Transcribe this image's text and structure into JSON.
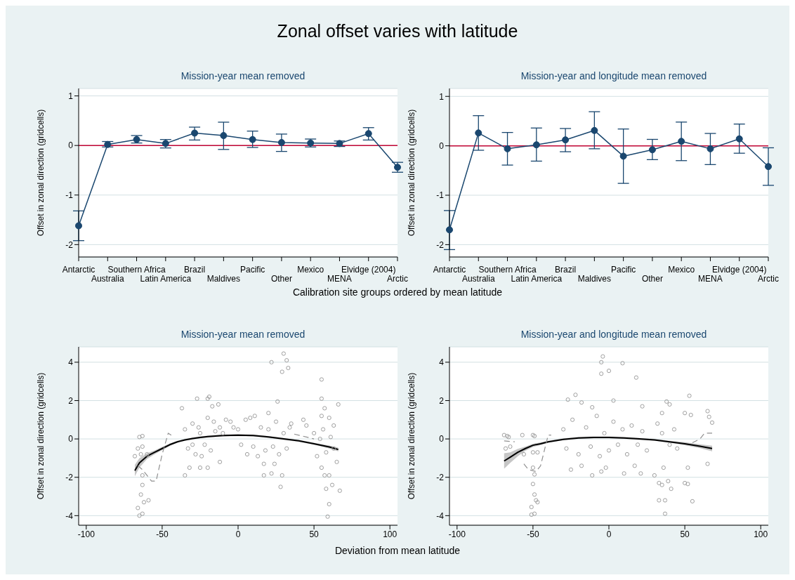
{
  "chart_data": [
    {
      "type": "line",
      "title": "Mission-year mean removed",
      "annotations": [
        "Zonal offset varies with latitude"
      ],
      "xlabel": "Calibration site groups ordered by mean latitude",
      "ylabel": "Offset in zonal direction (gridcells)",
      "categories": [
        "Antarctic",
        "Australia",
        "Southern Africa",
        "Latin America",
        "Brazil",
        "Maldives",
        "Pacific",
        "Other",
        "Mexico",
        "MENA",
        "Elvidge (2004)",
        "Arctic"
      ],
      "series": [
        {
          "color": "#1a476f",
          "values": [
            -1.62,
            0.02,
            0.12,
            0.04,
            0.25,
            0.2,
            0.12,
            0.06,
            0.05,
            0.04,
            0.24,
            -0.44
          ],
          "errors": [
            [
              -1.92,
              -1.32
            ],
            [
              -0.03,
              0.08
            ],
            [
              0.05,
              0.2
            ],
            [
              -0.05,
              0.12
            ],
            [
              0.11,
              0.37
            ],
            [
              -0.08,
              0.47
            ],
            [
              -0.04,
              0.29
            ],
            [
              -0.12,
              0.23
            ],
            [
              -0.03,
              0.13
            ],
            [
              -0.02,
              0.09
            ],
            [
              0.11,
              0.36
            ],
            [
              -0.54,
              -0.34
            ]
          ]
        }
      ],
      "ylim": [
        -2.25,
        1.15
      ],
      "yticks": [
        -2,
        -1,
        0,
        1
      ],
      "grid": "y",
      "marker": "circle",
      "ref_lines": [
        {
          "axis": "y",
          "value": 0,
          "color": "#c10534"
        }
      ]
    },
    {
      "type": "line",
      "title": "Mission-year and longitude mean removed",
      "ylabel": "Offset in zonal direction (gridcells)",
      "categories": [
        "Antarctic",
        "Australia",
        "Southern Africa",
        "Latin America",
        "Brazil",
        "Maldives",
        "Pacific",
        "Other",
        "Mexico",
        "MENA",
        "Elvidge (2004)",
        "Arctic"
      ],
      "series": [
        {
          "color": "#1a476f",
          "values": [
            -1.7,
            0.26,
            -0.06,
            0.02,
            0.12,
            0.31,
            -0.21,
            -0.08,
            0.09,
            -0.06,
            0.14,
            -0.42
          ],
          "errors": [
            [
              -2.1,
              -1.31
            ],
            [
              -0.09,
              0.61
            ],
            [
              -0.39,
              0.27
            ],
            [
              -0.31,
              0.36
            ],
            [
              -0.12,
              0.35
            ],
            [
              -0.06,
              0.69
            ],
            [
              -0.76,
              0.34
            ],
            [
              -0.28,
              0.13
            ],
            [
              -0.3,
              0.48
            ],
            [
              -0.38,
              0.25
            ],
            [
              -0.15,
              0.44
            ],
            [
              -0.8,
              -0.04
            ]
          ]
        }
      ],
      "ylim": [
        -2.25,
        1.16
      ],
      "yticks": [
        -2,
        -1,
        0,
        1
      ],
      "grid": "y",
      "marker": "circle",
      "ref_lines": [
        {
          "axis": "y",
          "value": 0,
          "color": "#c10534"
        }
      ]
    },
    {
      "type": "scatter",
      "title": "Mission-year mean removed",
      "xlabel": "Deviation from mean latitude",
      "ylabel": "Offset in zonal direction (gridcells)",
      "series": [
        {
          "type": "scatter",
          "color": "#a0a0a0",
          "marker": "circle",
          "x": [
            -68,
            -66,
            -65,
            -63,
            -63,
            -64,
            -63,
            -63,
            -64,
            -66,
            -65,
            -63,
            -62,
            -59,
            -60,
            -35,
            -37,
            -32,
            -27,
            -20,
            -19,
            -17,
            -13,
            -25,
            -20,
            -12,
            -8,
            -5,
            -3,
            0,
            2,
            5,
            8,
            11,
            15,
            6,
            10,
            13,
            20,
            22,
            24,
            26,
            29,
            30,
            32,
            33,
            28,
            29,
            17,
            17,
            22,
            35,
            43,
            45,
            50,
            55,
            55,
            57,
            55,
            60,
            60,
            59,
            58,
            62,
            66,
            67,
            65,
            52,
            55,
            57,
            60,
            63,
            -35,
            -33,
            -30,
            -28,
            -25,
            -22,
            -20,
            -18,
            -15,
            -12,
            -30,
            -26,
            -24,
            -16,
            -10,
            20,
            23,
            25,
            27,
            30,
            32,
            34,
            18,
            56,
            58,
            61,
            63,
            54
          ],
          "values": [
            -0.9,
            -0.5,
            0.1,
            0.15,
            -0.4,
            -0.8,
            -1.9,
            -2.4,
            -2.9,
            -3.6,
            -4.0,
            -3.9,
            -3.3,
            -3.2,
            -0.8,
            -1.9,
            1.6,
            -1.5,
            2.1,
            2.1,
            2.2,
            1.7,
            1.8,
            -1.5,
            -1.5,
            -1.2,
            1.0,
            0.9,
            0.6,
            0.5,
            -0.3,
            1.0,
            1.1,
            1.2,
            0.6,
            -0.8,
            -0.4,
            -0.9,
            1.35,
            4.0,
            -1.3,
            1.95,
            3.5,
            4.45,
            4.1,
            3.7,
            -2.5,
            -1.9,
            -1.9,
            -1.3,
            -1.8,
            0.8,
            1.0,
            0.7,
            0.3,
            3.1,
            2.1,
            1.6,
            1.2,
            1.1,
            -3.4,
            -4.05,
            -2.6,
            -2.4,
            1.8,
            -2.7,
            -1.2,
            -0.9,
            -1.5,
            -1.9,
            -1.9,
            0.7,
            0.5,
            -0.5,
            0.8,
            -0.8,
            0.3,
            -0.3,
            1.1,
            -0.6,
            0.4,
            0.6,
            -0.3,
            0.6,
            -0.9,
            0.9,
            0.3,
            0.5,
            -0.4,
            0.9,
            -0.8,
            0.3,
            -0.5,
            0.6,
            -0.6,
            0.5,
            -0.7,
            0.1,
            -0.5,
            0.0
          ]
        },
        {
          "type": "line",
          "color": "#000000",
          "x": [
            -68,
            -65,
            -60,
            -55,
            -50,
            -45,
            -40,
            -35,
            -30,
            -25,
            -20,
            -10,
            0,
            10,
            20,
            30,
            40,
            50,
            60,
            66
          ],
          "values": [
            -1.65,
            -1.25,
            -0.9,
            -0.7,
            -0.5,
            -0.3,
            -0.15,
            -0.05,
            0.02,
            0.08,
            0.12,
            0.18,
            0.2,
            0.18,
            0.1,
            0.0,
            -0.1,
            -0.25,
            -0.42,
            -0.55
          ],
          "lower": [
            -1.95,
            -1.5,
            -1.05,
            -0.8,
            -0.58,
            -0.37,
            -0.2,
            -0.1,
            -0.03,
            0.03,
            0.07,
            0.13,
            0.15,
            0.13,
            0.05,
            -0.05,
            -0.15,
            -0.3,
            -0.5,
            -0.65
          ],
          "upper": [
            -1.35,
            -1.0,
            -0.75,
            -0.6,
            -0.42,
            -0.23,
            -0.1,
            0.0,
            0.07,
            0.13,
            0.17,
            0.23,
            0.25,
            0.23,
            0.15,
            0.05,
            -0.05,
            -0.2,
            -0.34,
            -0.45
          ]
        },
        {
          "type": "line",
          "color": "#909090",
          "line_style": "dashed",
          "x": [
            -66,
            -63,
            -60,
            -57,
            -54,
            -50,
            -46,
            -44,
            0,
            37,
            45,
            50
          ],
          "values": [
            -1.4,
            -1.6,
            -1.9,
            -2.2,
            -2.2,
            -0.8,
            0.3,
            0.2,
            null,
            0.25,
            0.1,
            0.0
          ]
        }
      ],
      "xlim": [
        -105,
        105
      ],
      "xticks": [
        -100,
        -50,
        0,
        50,
        100
      ],
      "ylim": [
        -4.5,
        4.8
      ],
      "yticks": [
        -4,
        -2,
        0,
        2,
        4
      ],
      "grid": "y"
    },
    {
      "type": "scatter",
      "title": "Mission-year and longitude mean removed",
      "ylabel": "Offset in zonal direction (gridcells)",
      "series": [
        {
          "type": "scatter",
          "color": "#a0a0a0",
          "marker": "circle",
          "x": [
            -69,
            -67,
            -66,
            -68,
            -65,
            -57,
            -56,
            -50,
            -49,
            -50,
            -47,
            -50,
            -49,
            -50,
            -49,
            -48,
            -47,
            -51,
            -51,
            -49,
            -5,
            -4,
            -5,
            0,
            9,
            18,
            3,
            -22,
            -27,
            -18,
            -11,
            22,
            -25,
            -18,
            -11,
            -5,
            -2,
            10,
            17,
            21,
            38,
            40,
            35,
            32,
            50,
            53,
            54,
            65,
            66,
            68,
            65,
            52,
            50,
            52,
            55,
            30,
            33,
            35,
            37,
            37,
            33,
            41,
            39,
            36,
            -30,
            -28,
            -24,
            -20,
            -15,
            -12,
            -8,
            -6,
            -3,
            0,
            3,
            6,
            9,
            12,
            15,
            19,
            22,
            25,
            35,
            40,
            43,
            45
          ],
          "values": [
            0.2,
            0.15,
            0.1,
            -0.5,
            -0.4,
            0.2,
            -0.8,
            0.2,
            0.15,
            -0.7,
            -0.7,
            -1.5,
            -1.85,
            -2.35,
            -2.9,
            -3.2,
            -3.3,
            -3.55,
            -3.95,
            -3.9,
            4.0,
            4.3,
            3.4,
            3.55,
            3.95,
            3.2,
            2.0,
            2.3,
            2.05,
            1.9,
            1.65,
            1.7,
            -1.6,
            -1.4,
            -1.9,
            -1.7,
            -1.5,
            -1.8,
            -1.4,
            -1.8,
            1.95,
            1.8,
            1.35,
            0.8,
            1.35,
            2.25,
            1.25,
            1.45,
            1.15,
            0.85,
            -1.3,
            -1.5,
            -2.3,
            -2.35,
            -3.25,
            -1.9,
            -2.3,
            -2.4,
            -3.2,
            -3.9,
            -3.2,
            -2.6,
            -2.2,
            -1.5,
            0.5,
            -0.5,
            1.0,
            -0.8,
            0.6,
            -0.4,
            1.2,
            -0.9,
            0.3,
            -0.6,
            0.9,
            -0.3,
            0.5,
            -0.8,
            0.7,
            -0.3,
            0.4,
            -0.6,
            0.3,
            -0.3,
            0.5,
            -0.5
          ]
        },
        {
          "type": "line",
          "color": "#000000",
          "x": [
            -69,
            -65,
            -60,
            -55,
            -50,
            -45,
            -40,
            -30,
            -20,
            -10,
            0,
            10,
            20,
            30,
            40,
            50,
            60,
            68
          ],
          "values": [
            -1.15,
            -0.95,
            -0.7,
            -0.5,
            -0.33,
            -0.25,
            -0.15,
            -0.02,
            0.05,
            0.08,
            0.08,
            0.05,
            0.0,
            -0.05,
            -0.15,
            -0.25,
            -0.38,
            -0.5
          ],
          "lower": [
            -1.55,
            -1.25,
            -0.9,
            -0.62,
            -0.42,
            -0.32,
            -0.2,
            -0.07,
            0.0,
            0.03,
            0.03,
            0.0,
            -0.05,
            -0.1,
            -0.2,
            -0.33,
            -0.48,
            -0.65
          ],
          "upper": [
            -0.75,
            -0.7,
            -0.52,
            -0.4,
            -0.25,
            -0.18,
            -0.1,
            0.03,
            0.1,
            0.13,
            0.13,
            0.1,
            0.05,
            0.0,
            -0.1,
            -0.17,
            -0.28,
            -0.35
          ]
        },
        {
          "type": "line",
          "color": "#909090",
          "line_style": "dashed",
          "x": [
            -69,
            -62,
            -58,
            -56,
            -53,
            -48,
            -45,
            -40,
            -38,
            0,
            55,
            60,
            63,
            68
          ],
          "values": [
            -0.1,
            -0.15,
            null,
            -1.3,
            -1.6,
            -1.7,
            -1.4,
            0.2,
            0.2,
            null,
            -0.2,
            0.0,
            0.3,
            0.3
          ]
        }
      ],
      "xlim": [
        -105,
        105
      ],
      "xticks": [
        -100,
        -50,
        0,
        50,
        100
      ],
      "ylim": [
        -4.5,
        4.8
      ],
      "yticks": [
        -4,
        -2,
        0,
        2,
        4
      ],
      "grid": "y"
    }
  ]
}
